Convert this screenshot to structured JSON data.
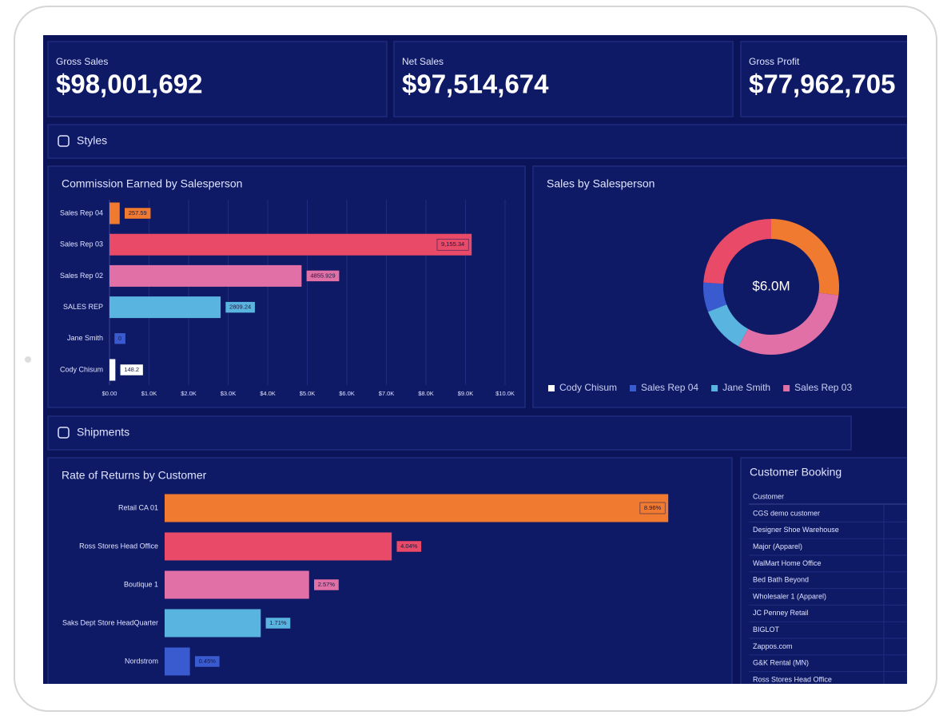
{
  "kpis": [
    {
      "label": "Gross Sales",
      "value": "$98,001,692"
    },
    {
      "label": "Net Sales",
      "value": "$97,514,674"
    },
    {
      "label": "Gross Profit",
      "value": "$77,962,705"
    }
  ],
  "sections": [
    "Styles",
    "Shipments"
  ],
  "commission_chart": {
    "type": "bar",
    "title": "Commission Earned by Salesperson",
    "categories": [
      "Sales Rep 04",
      "Sales Rep 03",
      "Sales Rep 02",
      "SALES REP",
      "Jane Smith",
      "Cody Chisum"
    ],
    "values": [
      257.59,
      9155.34,
      4855.929,
      2809.24,
      0,
      148.2
    ],
    "value_labels": [
      "257.59",
      "9,155.34",
      "4855.929",
      "2809.24",
      "0",
      "148.2"
    ],
    "colors": [
      "#f07a30",
      "#e84a67",
      "#e070a6",
      "#5ab4e0",
      "#3a5bd0",
      "#ffffff"
    ],
    "xlim": [
      0,
      10000
    ],
    "xticks": [
      {
        "value": 0,
        "label": "$0.00"
      },
      {
        "value": 1000,
        "label": "$1.0K"
      },
      {
        "value": 2000,
        "label": "$2.0K"
      },
      {
        "value": 3000,
        "label": "$3.0K"
      },
      {
        "value": 4000,
        "label": "$4.0K"
      },
      {
        "value": 5000,
        "label": "$5.0K"
      },
      {
        "value": 6000,
        "label": "$6.0K"
      },
      {
        "value": 7000,
        "label": "$7.0K"
      },
      {
        "value": 8000,
        "label": "$8.0K"
      },
      {
        "value": 9000,
        "label": "$9.0K"
      },
      {
        "value": 10000,
        "label": "$10.0K"
      }
    ],
    "grid": true
  },
  "sales_chart": {
    "type": "pie",
    "title": "Sales by Salesperson",
    "center_label": "$6.0M",
    "values": [
      27,
      31,
      11,
      7,
      24
    ],
    "colors": [
      "#f07a30",
      "#e070a6",
      "#5ab4e0",
      "#3a5bd0",
      "#e84a67"
    ],
    "legend": [
      {
        "name": "Cody Chisum",
        "color": "#ffffff"
      },
      {
        "name": "Sales Rep 04",
        "color": "#3a5bd0"
      },
      {
        "name": "Jane Smith",
        "color": "#5ab4e0"
      },
      {
        "name": "Sales Rep 03",
        "color": "#e070a6"
      }
    ]
  },
  "returns_chart": {
    "type": "bar",
    "title": "Rate of Returns by Customer",
    "categories": [
      "Retail CA 01",
      "Ross Stores Head Office",
      "Boutique 1",
      "Saks Dept Store HeadQuarter",
      "Nordstrom"
    ],
    "values": [
      8.96,
      4.04,
      2.57,
      1.71,
      0.45
    ],
    "value_labels": [
      "8.96%",
      "4.04%",
      "2.57%",
      "1.71%",
      "0.45%"
    ],
    "colors": [
      "#f07a30",
      "#e84a67",
      "#e070a6",
      "#5ab4e0",
      "#3a5bd0"
    ],
    "xlim": [
      0,
      9
    ]
  },
  "booking_table": {
    "title": "Customer Booking",
    "header": [
      "Customer"
    ],
    "rows": [
      [
        "CGS demo customer"
      ],
      [
        "Designer Shoe Warehouse"
      ],
      [
        "Major (Apparel)"
      ],
      [
        "WalMart Home Office"
      ],
      [
        "Bed Bath Beyond"
      ],
      [
        "Wholesaler 1 (Apparel)"
      ],
      [
        "JC Penney Retail"
      ],
      [
        "BIGLOT"
      ],
      [
        "Zappos.com"
      ],
      [
        "G&K Rental (MN)"
      ],
      [
        "Ross Stores Head Office"
      ]
    ]
  }
}
